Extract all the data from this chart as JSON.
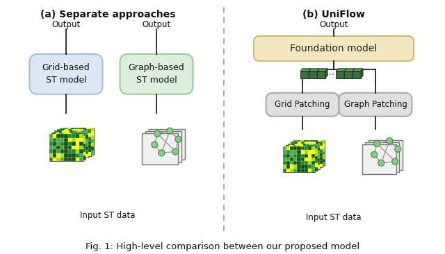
{
  "title_a": "(a) Separate approaches",
  "title_b": "(b) UniFlow",
  "box_grid_label": "Grid-based\nST model",
  "box_graph_label": "Graph-based\nST model",
  "box_foundation_label": "Foundation model",
  "box_grid_patching_label": "Grid Patching",
  "box_graph_patching_label": "Graph Patching",
  "output_label": "Output",
  "input_label": "Input ST data",
  "background_color": "#ffffff",
  "box_grid_color": "#dce8f5",
  "box_grid_edge": "#aabbd0",
  "box_graph_color": "#dceedd",
  "box_graph_edge": "#99cc99",
  "box_foundation_color": "#f5e8c0",
  "box_foundation_edge": "#d4b87a",
  "box_patching_color": "#e0e0e0",
  "box_patching_edge": "#aaaaaa",
  "arrow_color": "#222222",
  "dashed_line_color": "#999999",
  "token_color": "#3a6b3a",
  "token_edge": "#1a3a1a",
  "caption": "Fig. 1: High-level comparison between our proposed model",
  "caption_color": "#111111"
}
